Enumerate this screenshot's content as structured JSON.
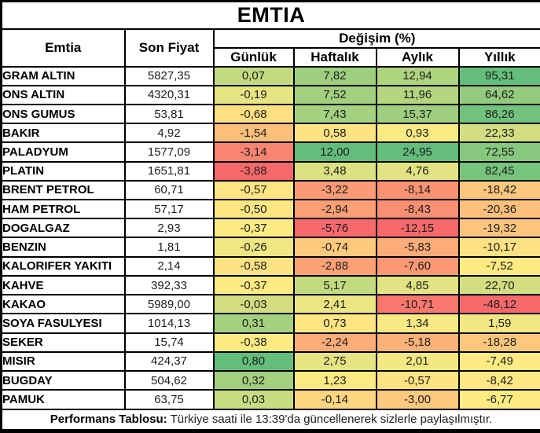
{
  "title": "EMTIA",
  "header": {
    "emtia": "Emtia",
    "son_fiyat": "Son Fiyat",
    "degisim": "Değişim (%)",
    "periods": [
      "Günlük",
      "Haftalık",
      "Aylık",
      "Yıllık"
    ]
  },
  "footer": {
    "label": "Performans Tablosu:",
    "text": "Türkiye saati ile 13:39'da güncellenerek sizlerle paylaşılmıştır."
  },
  "colors": {
    "scale_min": "#F8696B",
    "scale_mid": "#FFEB84",
    "scale_max": "#63BE7B",
    "border": "#000000",
    "background": "#FFFFFF"
  },
  "chart_data": {
    "type": "table",
    "title": "EMTIA",
    "columns": [
      "Emtia",
      "Son Fiyat",
      "Günlük",
      "Haftalık",
      "Aylık",
      "Yıllık"
    ],
    "heatmap": "per-column 3-color scale: min #F8696B, median #FFEB84, max #63BE7B",
    "rows": [
      [
        "GRAM ALTIN",
        5827.35,
        0.07,
        7.82,
        12.94,
        95.31
      ],
      [
        "ONS ALTIN",
        4320.31,
        -0.19,
        7.52,
        11.96,
        64.62
      ],
      [
        "ONS GUMUS",
        53.81,
        -0.68,
        7.43,
        15.37,
        86.26
      ],
      [
        "BAKIR",
        4.92,
        -1.54,
        0.58,
        0.93,
        22.33
      ],
      [
        "PALADYUM",
        1577.09,
        -3.14,
        12.0,
        24.95,
        72.55
      ],
      [
        "PLATIN",
        1651.81,
        -3.88,
        3.48,
        4.76,
        82.45
      ],
      [
        "BRENT PETROL",
        60.71,
        -0.57,
        -3.22,
        -8.14,
        -18.42
      ],
      [
        "HAM PETROL",
        57.17,
        -0.5,
        -2.94,
        -8.43,
        -20.36
      ],
      [
        "DOGALGAZ",
        2.93,
        -0.37,
        -5.76,
        -12.15,
        -19.32
      ],
      [
        "BENZIN",
        1.81,
        -0.26,
        -0.74,
        -5.83,
        -10.17
      ],
      [
        "KALORIFER YAKITI",
        2.14,
        -0.58,
        -2.88,
        -7.6,
        -7.52
      ],
      [
        "KAHVE",
        392.33,
        -0.37,
        5.17,
        4.85,
        22.7
      ],
      [
        "KAKAO",
        5989.0,
        -0.03,
        2.41,
        -10.71,
        -48.12
      ],
      [
        "SOYA FASULYESI",
        1014.13,
        0.31,
        0.73,
        1.34,
        1.59
      ],
      [
        "SEKER",
        15.74,
        -0.38,
        -2.24,
        -5.18,
        -18.28
      ],
      [
        "MISIR",
        424.37,
        0.8,
        2.75,
        2.01,
        -7.49
      ],
      [
        "BUGDAY",
        504.62,
        0.32,
        1.23,
        -0.57,
        -8.42
      ],
      [
        "PAMUK",
        63.75,
        0.03,
        -0.14,
        -3.0,
        -6.77
      ]
    ]
  }
}
